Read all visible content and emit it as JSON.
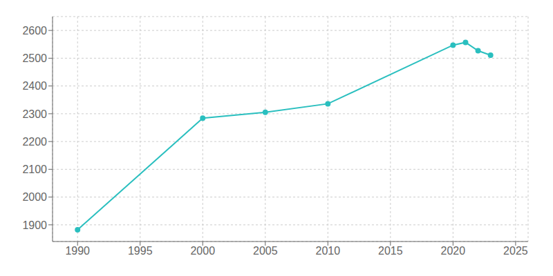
{
  "chart_data": {
    "type": "line",
    "x": [
      1990,
      2000,
      2005,
      2010,
      2020,
      2021,
      2022,
      2023
    ],
    "values": [
      1882,
      2284,
      2305,
      2336,
      2547,
      2557,
      2527,
      2511
    ],
    "color": "#2abfbf",
    "marker": "circle",
    "xlim": [
      1988,
      2026
    ],
    "ylim": [
      1840,
      2650
    ],
    "xticks": [
      1990,
      1995,
      2000,
      2005,
      2010,
      2015,
      2020,
      2025
    ],
    "yticks": [
      1900,
      2000,
      2100,
      2200,
      2300,
      2400,
      2500,
      2600
    ],
    "grid": true
  }
}
